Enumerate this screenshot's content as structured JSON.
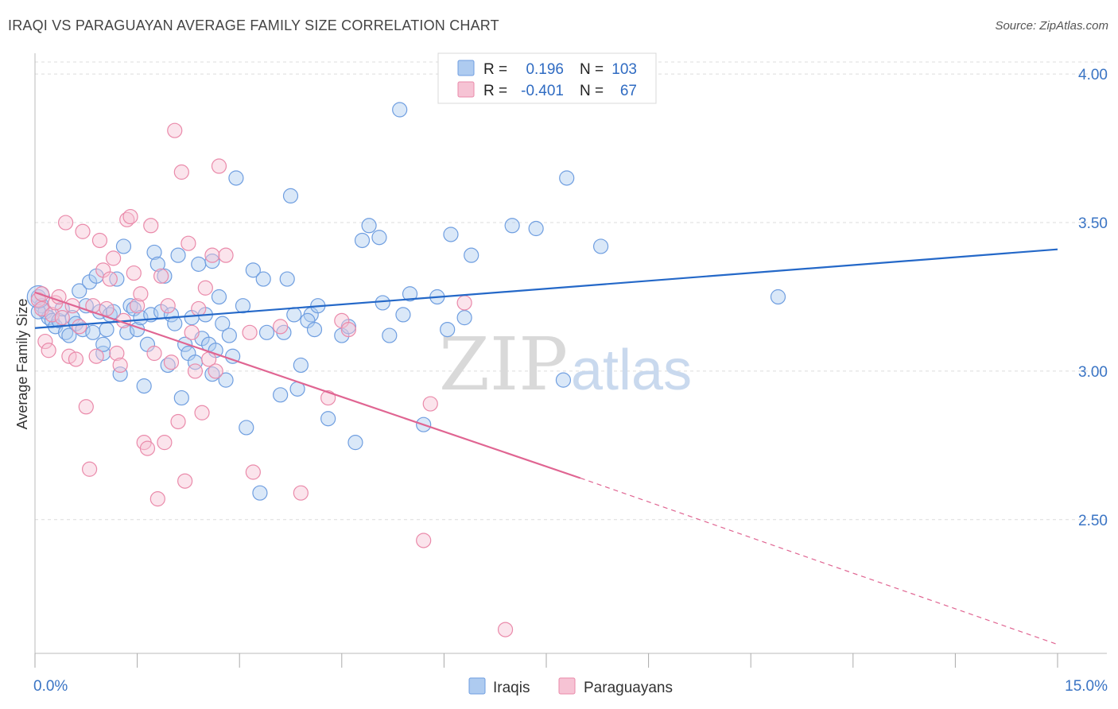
{
  "header": {
    "title": "IRAQI VS PARAGUAYAN AVERAGE FAMILY SIZE CORRELATION CHART",
    "source": "Source: ZipAtlas.com"
  },
  "legend": {
    "r_label": "R =",
    "n_label": "N =",
    "rows": [
      {
        "r": "0.196",
        "n": "103"
      },
      {
        "r": "-0.401",
        "n": "67"
      }
    ]
  },
  "watermark": {
    "zip": "ZIP",
    "atlas": "atlas"
  },
  "chart_data": {
    "type": "scatter",
    "ylabel": "Average Family Size",
    "x_ticks": [
      "0.0%",
      "15.0%"
    ],
    "y_ticks": [
      "4.00",
      "3.50",
      "3.00",
      "2.50"
    ],
    "xlim": [
      0,
      15
    ],
    "ylim": [
      2.05,
      4.07
    ],
    "y_tick_values": [
      4.0,
      3.5,
      3.0,
      2.5
    ],
    "grid": true,
    "legend_position": "top-center",
    "colors": {
      "iraqis": "#6f9ee0",
      "iraqis_fill": "#aecbf0",
      "iraqis_line": "#2468c8",
      "paraguayans": "#ea8aaa",
      "paraguayans_fill": "#f6c3d4",
      "paraguayans_line": "#e06592"
    },
    "series": [
      {
        "name": "Iraqis",
        "trend": {
          "x0": 0,
          "y0": 3.145,
          "x1": 15,
          "y1": 3.41
        },
        "points": [
          [
            0.05,
            3.25
          ],
          [
            0.1,
            3.22
          ],
          [
            0.15,
            3.2
          ],
          [
            0.2,
            3.18
          ],
          [
            0.25,
            3.17
          ],
          [
            0.3,
            3.15
          ],
          [
            0.35,
            3.17
          ],
          [
            0.4,
            3.21
          ],
          [
            0.45,
            3.13
          ],
          [
            0.5,
            3.12
          ],
          [
            0.55,
            3.18
          ],
          [
            0.6,
            3.16
          ],
          [
            0.65,
            3.27
          ],
          [
            0.7,
            3.14
          ],
          [
            0.75,
            3.22
          ],
          [
            0.8,
            3.3
          ],
          [
            0.85,
            3.13
          ],
          [
            0.9,
            3.32
          ],
          [
            0.95,
            3.2
          ],
          [
            1.0,
            3.06
          ],
          [
            1.0,
            3.09
          ],
          [
            1.05,
            3.14
          ],
          [
            1.1,
            3.19
          ],
          [
            1.15,
            3.2
          ],
          [
            1.2,
            3.31
          ],
          [
            1.25,
            2.99
          ],
          [
            1.3,
            3.42
          ],
          [
            1.35,
            3.13
          ],
          [
            1.4,
            3.22
          ],
          [
            1.45,
            3.21
          ],
          [
            1.5,
            3.14
          ],
          [
            1.55,
            3.18
          ],
          [
            1.6,
            2.95
          ],
          [
            1.65,
            3.09
          ],
          [
            1.7,
            3.19
          ],
          [
            1.75,
            3.4
          ],
          [
            1.8,
            3.36
          ],
          [
            1.85,
            3.2
          ],
          [
            1.9,
            3.32
          ],
          [
            1.95,
            3.02
          ],
          [
            2.0,
            3.19
          ],
          [
            2.05,
            3.16
          ],
          [
            2.1,
            3.39
          ],
          [
            2.15,
            2.91
          ],
          [
            2.2,
            3.09
          ],
          [
            2.25,
            3.06
          ],
          [
            2.3,
            3.18
          ],
          [
            2.35,
            3.03
          ],
          [
            2.4,
            3.36
          ],
          [
            2.45,
            3.11
          ],
          [
            2.5,
            3.19
          ],
          [
            2.55,
            3.09
          ],
          [
            2.6,
            2.99
          ],
          [
            2.6,
            3.37
          ],
          [
            2.65,
            3.07
          ],
          [
            2.7,
            3.25
          ],
          [
            2.75,
            3.16
          ],
          [
            2.8,
            2.97
          ],
          [
            2.85,
            3.12
          ],
          [
            2.9,
            3.05
          ],
          [
            2.95,
            3.65
          ],
          [
            3.05,
            3.22
          ],
          [
            3.1,
            2.81
          ],
          [
            3.2,
            3.34
          ],
          [
            3.3,
            2.59
          ],
          [
            3.35,
            3.31
          ],
          [
            3.4,
            3.13
          ],
          [
            3.6,
            2.92
          ],
          [
            3.65,
            3.13
          ],
          [
            3.7,
            3.31
          ],
          [
            3.75,
            3.59
          ],
          [
            3.8,
            3.19
          ],
          [
            3.85,
            2.94
          ],
          [
            3.9,
            3.02
          ],
          [
            4.05,
            3.19
          ],
          [
            4.0,
            3.17
          ],
          [
            4.1,
            3.14
          ],
          [
            4.15,
            3.22
          ],
          [
            4.3,
            2.84
          ],
          [
            4.5,
            3.12
          ],
          [
            4.6,
            3.15
          ],
          [
            4.7,
            2.76
          ],
          [
            4.8,
            3.44
          ],
          [
            4.9,
            3.49
          ],
          [
            5.05,
            3.45
          ],
          [
            5.1,
            3.23
          ],
          [
            5.2,
            3.12
          ],
          [
            5.35,
            3.88
          ],
          [
            5.5,
            3.26
          ],
          [
            5.4,
            3.19
          ],
          [
            5.7,
            2.82
          ],
          [
            5.9,
            3.25
          ],
          [
            6.05,
            3.14
          ],
          [
            6.1,
            3.46
          ],
          [
            6.3,
            3.18
          ],
          [
            6.4,
            3.39
          ],
          [
            7.0,
            3.49
          ],
          [
            7.35,
            3.48
          ],
          [
            7.8,
            3.65
          ],
          [
            7.75,
            2.97
          ],
          [
            8.3,
            3.42
          ],
          [
            10.9,
            3.25
          ],
          [
            0.05,
            3.2
          ]
        ]
      },
      {
        "name": "Paraguayans",
        "trend": {
          "x0": 0,
          "y0": 3.265,
          "x1": 8.0,
          "y1": 2.64,
          "dash_x1": 15,
          "dash_y1": 2.08
        },
        "points": [
          [
            0.05,
            3.24
          ],
          [
            0.1,
            3.21
          ],
          [
            0.15,
            3.1
          ],
          [
            0.2,
            3.07
          ],
          [
            0.25,
            3.19
          ],
          [
            0.3,
            3.23
          ],
          [
            0.35,
            3.25
          ],
          [
            0.4,
            3.18
          ],
          [
            0.45,
            3.5
          ],
          [
            0.5,
            3.05
          ],
          [
            0.55,
            3.22
          ],
          [
            0.6,
            3.04
          ],
          [
            0.65,
            3.15
          ],
          [
            0.7,
            3.47
          ],
          [
            0.75,
            2.88
          ],
          [
            0.8,
            2.67
          ],
          [
            0.85,
            3.22
          ],
          [
            0.9,
            3.05
          ],
          [
            0.95,
            3.44
          ],
          [
            1.0,
            3.34
          ],
          [
            1.05,
            3.21
          ],
          [
            1.1,
            3.31
          ],
          [
            1.15,
            3.38
          ],
          [
            1.2,
            3.06
          ],
          [
            1.25,
            3.02
          ],
          [
            1.3,
            3.17
          ],
          [
            1.35,
            3.51
          ],
          [
            1.4,
            3.52
          ],
          [
            1.45,
            3.33
          ],
          [
            1.5,
            3.22
          ],
          [
            1.55,
            3.26
          ],
          [
            1.6,
            2.76
          ],
          [
            1.65,
            2.74
          ],
          [
            1.7,
            3.49
          ],
          [
            1.75,
            3.06
          ],
          [
            1.8,
            2.57
          ],
          [
            1.85,
            3.32
          ],
          [
            1.9,
            2.76
          ],
          [
            1.95,
            3.22
          ],
          [
            2.0,
            3.03
          ],
          [
            2.05,
            3.81
          ],
          [
            2.1,
            2.83
          ],
          [
            2.15,
            3.67
          ],
          [
            2.2,
            2.63
          ],
          [
            2.25,
            3.43
          ],
          [
            2.3,
            3.13
          ],
          [
            2.35,
            3.0
          ],
          [
            2.4,
            3.21
          ],
          [
            2.45,
            2.86
          ],
          [
            2.5,
            3.28
          ],
          [
            2.55,
            3.04
          ],
          [
            2.6,
            3.39
          ],
          [
            2.65,
            3.0
          ],
          [
            2.7,
            3.69
          ],
          [
            2.8,
            3.39
          ],
          [
            3.15,
            3.13
          ],
          [
            3.2,
            2.66
          ],
          [
            3.6,
            3.15
          ],
          [
            3.9,
            2.59
          ],
          [
            4.3,
            2.91
          ],
          [
            4.5,
            3.17
          ],
          [
            4.6,
            3.14
          ],
          [
            5.7,
            2.43
          ],
          [
            5.8,
            2.89
          ],
          [
            6.3,
            3.23
          ],
          [
            6.9,
            2.13
          ],
          [
            0.1,
            3.26
          ]
        ]
      }
    ]
  }
}
